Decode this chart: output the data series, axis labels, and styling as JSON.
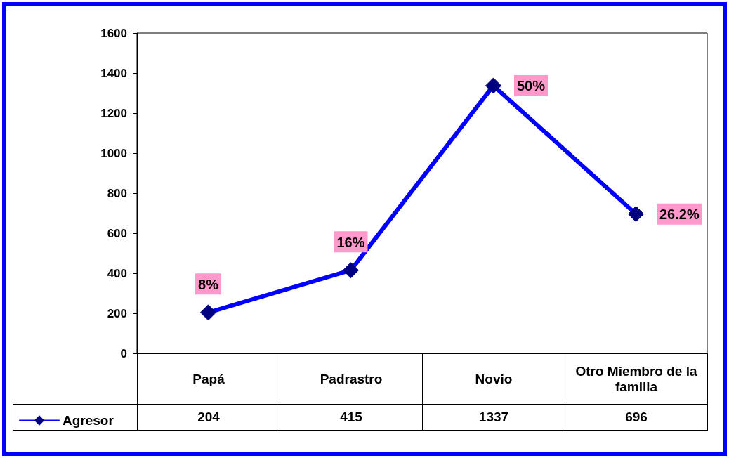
{
  "chart_data": {
    "type": "line",
    "categories": [
      "Papá",
      "Padrastro",
      "Novio",
      "Otro Miembro de la familia"
    ],
    "series": [
      {
        "name": "Agresor",
        "color": "#0000ff",
        "values": [
          204,
          415,
          1337,
          696
        ],
        "value_labels": [
          "204",
          "415",
          "1337",
          "696"
        ]
      }
    ],
    "annotations": [
      "8%",
      "16%",
      "50%",
      "26.2%"
    ],
    "ylim": [
      0,
      1600
    ],
    "yticks": [
      0,
      200,
      400,
      600,
      800,
      1000,
      1200,
      1400,
      1600
    ],
    "grid": false,
    "legend": "bottom left",
    "marker": "diamond",
    "line_style": "solid"
  }
}
